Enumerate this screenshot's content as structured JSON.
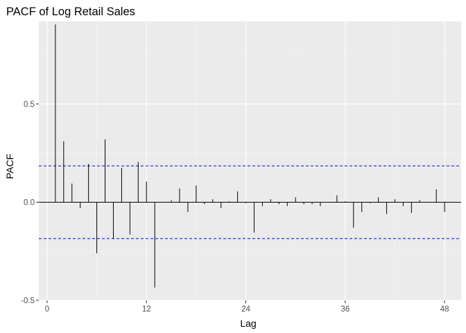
{
  "chart_data": {
    "type": "bar",
    "subtype": "pacf-stem",
    "title": "PACF of Log Retail Sales",
    "xlabel": "Lag",
    "ylabel": "PACF",
    "xlim": [
      -1,
      50
    ],
    "ylim": [
      -0.5,
      0.92
    ],
    "x_ticks": [
      0,
      12,
      24,
      36,
      48
    ],
    "y_ticks": [
      -0.5,
      0.0,
      0.5
    ],
    "y_tick_labels": [
      "-0.5",
      "0.0",
      "0.5"
    ],
    "confidence_bounds": [
      0.185,
      -0.185
    ],
    "grid": true,
    "lags": [
      1,
      2,
      3,
      4,
      5,
      6,
      7,
      8,
      9,
      10,
      11,
      12,
      13,
      14,
      15,
      16,
      17,
      18,
      19,
      20,
      21,
      22,
      23,
      24,
      25,
      26,
      27,
      28,
      29,
      30,
      31,
      32,
      33,
      34,
      35,
      36,
      37,
      38,
      39,
      40,
      41,
      42,
      43,
      44,
      45,
      46,
      47,
      48
    ],
    "values": [
      0.905,
      0.31,
      0.095,
      -0.03,
      0.195,
      -0.26,
      0.32,
      -0.185,
      0.175,
      -0.165,
      0.205,
      0.105,
      -0.435,
      0.0,
      0.01,
      0.07,
      -0.05,
      0.085,
      -0.01,
      0.015,
      -0.03,
      0.005,
      0.055,
      -0.005,
      -0.155,
      -0.02,
      0.015,
      -0.01,
      -0.02,
      0.025,
      -0.01,
      -0.01,
      -0.02,
      0.0,
      0.035,
      0.005,
      -0.13,
      -0.05,
      -0.005,
      0.025,
      -0.06,
      0.015,
      -0.02,
      -0.055,
      0.01,
      0.0,
      0.065,
      -0.05
    ],
    "colors": {
      "panel": "#ebebeb",
      "grid_major": "#ffffff",
      "grid_minor": "#f5f5f5",
      "bars": "#000000",
      "bounds": "#0000ff",
      "tick_text": "#4d4d4d"
    }
  }
}
